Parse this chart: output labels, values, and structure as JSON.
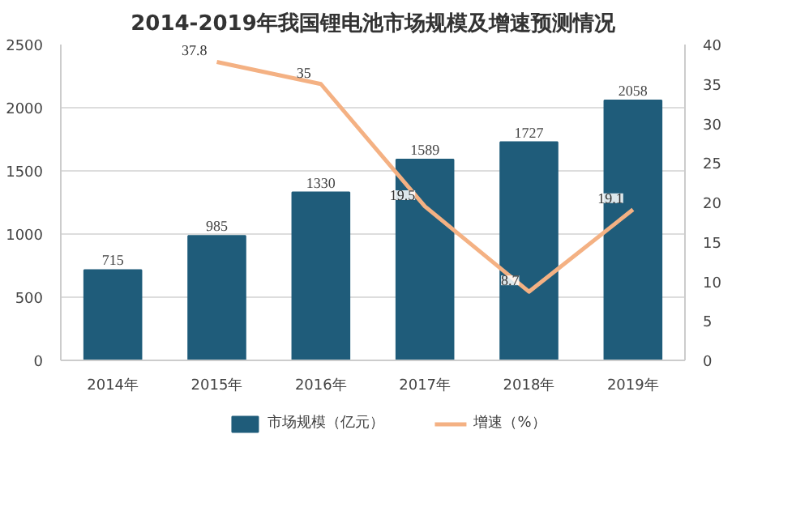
{
  "chart_data": {
    "type": "bar",
    "title": "2014-2019年我国锂电池市场规模及增速预测情况",
    "categories": [
      "2014年",
      "2015年",
      "2016年",
      "2017年",
      "2018年",
      "2019年"
    ],
    "series": [
      {
        "name": "市场规模（亿元）",
        "color": "#1f5c7a",
        "values": [
          715,
          985,
          1330,
          1589,
          1727,
          2058
        ]
      },
      {
        "name": "增速（%）",
        "type": "line",
        "axis": "y2",
        "color": "#f4b183",
        "values": [
          null,
          37.8,
          35,
          19.5,
          8.7,
          19.1
        ]
      }
    ],
    "ylim": [
      0,
      2500
    ],
    "yticks": [
      0,
      500,
      1000,
      1500,
      2000,
      2500
    ],
    "y2lim": [
      0,
      40
    ],
    "y2ticks": [
      0,
      5,
      10,
      15,
      20,
      25,
      30,
      35,
      40
    ],
    "grid": "y",
    "legend": "bottom",
    "data_labels": true,
    "marker": "none",
    "line_style": "solid"
  }
}
